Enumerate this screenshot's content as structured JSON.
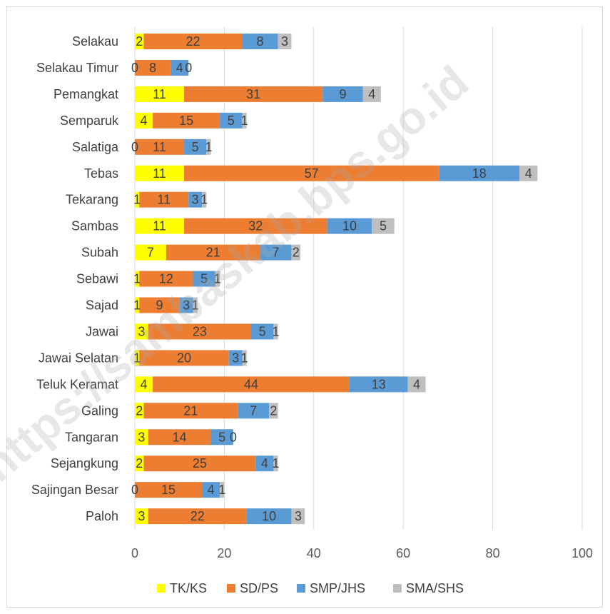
{
  "chart_data": {
    "type": "bar",
    "orientation": "horizontal",
    "stacked": true,
    "categories": [
      "Selakau",
      "Selakau Timur",
      "Pemangkat",
      "Semparuk",
      "Salatiga",
      "Tebas",
      "Tekarang",
      "Sambas",
      "Subah",
      "Sebawi",
      "Sajad",
      "Jawai",
      "Jawai Selatan",
      "Teluk Keramat",
      "Galing",
      "Tangaran",
      "Sejangkung",
      "Sajingan Besar",
      "Paloh"
    ],
    "series": [
      {
        "name": "TK/KS",
        "color": "#ffff00",
        "values": [
          2,
          0,
          11,
          4,
          0,
          11,
          1,
          11,
          7,
          1,
          1,
          3,
          1,
          4,
          2,
          3,
          2,
          0,
          3
        ]
      },
      {
        "name": "SD/PS",
        "color": "#ed7d31",
        "values": [
          22,
          8,
          31,
          15,
          11,
          57,
          11,
          32,
          21,
          12,
          9,
          23,
          20,
          44,
          21,
          14,
          25,
          15,
          22
        ]
      },
      {
        "name": "SMP/JHS",
        "color": "#5b9bd5",
        "values": [
          8,
          4,
          9,
          5,
          5,
          18,
          3,
          10,
          7,
          5,
          3,
          5,
          3,
          13,
          7,
          5,
          4,
          4,
          10
        ]
      },
      {
        "name": "SMA/SHS",
        "color": "#bfbfbf",
        "values": [
          3,
          0,
          4,
          1,
          1,
          4,
          1,
          5,
          2,
          1,
          1,
          1,
          1,
          4,
          2,
          0,
          1,
          1,
          3
        ]
      }
    ],
    "xlim": [
      0,
      100
    ],
    "xticks": [
      "0",
      "20",
      "40",
      "60",
      "80",
      "100"
    ],
    "grid": true,
    "legend_position": "bottom",
    "title": "",
    "xlabel": "",
    "ylabel": ""
  },
  "watermark": "https://sambaskab.bps.go.id"
}
